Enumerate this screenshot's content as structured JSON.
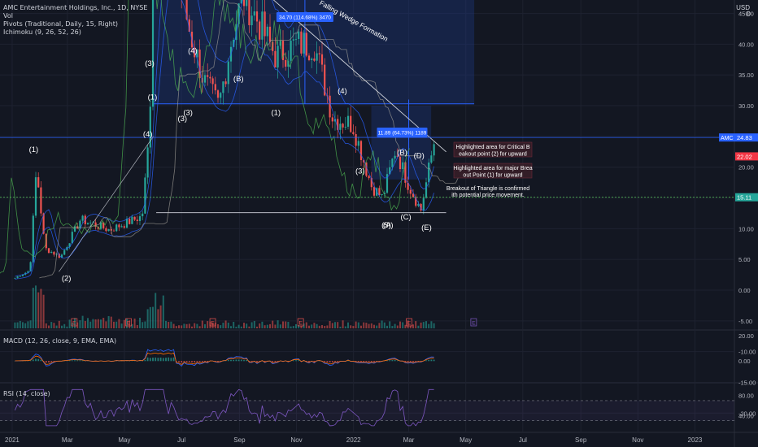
{
  "header": {
    "title": "AMC Entertainment Holdings, Inc., 1D, NYSE",
    "indicators": [
      "Vol",
      "Pivots (Traditional, Daily, 15, Right)",
      "Ichimoku (9, 26, 52, 26)"
    ],
    "currency": "USD"
  },
  "colors": {
    "background": "#131722",
    "grid": "#1e2230",
    "up": "#26a69a",
    "down": "#ef5350",
    "bb_blue": "#2962ff",
    "macd_line": "#2962ff",
    "signal_line": "#ff6d00",
    "rsi_line": "#7e57c2",
    "ichimoku_green": "#4caf50",
    "ichimoku_red": "#f23645",
    "target_box": "#1e3a8a",
    "label_blue": "#2962ff",
    "pivot_white": "#d1d4dc",
    "annotation_box": "#3a1f28"
  },
  "panes": {
    "macd_title": "MACD (12, 26, close, 9, EMA, EMA)",
    "rsi_title": "RSI (14, close)"
  },
  "chart_data": [
    {
      "type": "candlestick",
      "symbol": "AMC",
      "title": "AMC Entertainment Holdings, Inc., 1D, NYSE",
      "x_ticks": [
        "2021",
        "Mar",
        "May",
        "Jul",
        "Sep",
        "Nov",
        "2022",
        "Mar",
        "May",
        "Jul",
        "Sep",
        "Nov",
        "2023"
      ],
      "y_ticks": [
        "65.00",
        "60.00",
        "55.00",
        "50.00",
        "45.00",
        "40.00",
        "35.00",
        "30.00",
        "25.00",
        "20.00",
        "15.00",
        "10.00",
        "5.00",
        "0.00",
        "-5.00",
        "-10.00",
        "-15.00",
        "-20.00"
      ],
      "ylim": [
        -22,
        70
      ],
      "close_path": [
        [
          "2021-01-04",
          2.0
        ],
        [
          "2021-01-20",
          3.2
        ],
        [
          "2021-01-27",
          19.9
        ],
        [
          "2021-02-05",
          6.8
        ],
        [
          "2021-02-22",
          5.4
        ],
        [
          "2021-03-15",
          11.5
        ],
        [
          "2021-04-15",
          9.8
        ],
        [
          "2021-05-20",
          12.0
        ],
        [
          "2021-05-28",
          26.5
        ],
        [
          "2021-06-02",
          62.0
        ],
        [
          "2021-06-08",
          55.0
        ],
        [
          "2021-06-20",
          56.0
        ],
        [
          "2021-07-10",
          42.0
        ],
        [
          "2021-07-25",
          34.0
        ],
        [
          "2021-08-10",
          30.0
        ],
        [
          "2021-08-25",
          42.0
        ],
        [
          "2021-09-05",
          48.0
        ],
        [
          "2021-09-20",
          44.0
        ],
        [
          "2021-10-10",
          38.0
        ],
        [
          "2021-11-01",
          40.0
        ],
        [
          "2021-11-20",
          40.0
        ],
        [
          "2021-12-10",
          28.0
        ],
        [
          "2021-12-31",
          27.0
        ],
        [
          "2022-01-20",
          17.0
        ],
        [
          "2022-02-01",
          15.0
        ],
        [
          "2022-02-15",
          23.0
        ],
        [
          "2022-03-01",
          17.0
        ],
        [
          "2022-03-14",
          13.0
        ],
        [
          "2022-03-29",
          24.8
        ]
      ],
      "series_labels": {
        "current": "AMC",
        "current_value": "24.83",
        "pivot_value": "22.02",
        "green_value": "15.11"
      },
      "wave_labels": [
        "(1)",
        "(2)",
        "(3)",
        "(4)",
        "(1)",
        "(2)",
        "(3)",
        "(4)",
        "(A)",
        "(B)",
        "(C)",
        "(1)",
        "(2)",
        "(3)",
        "(4)",
        "(5)",
        "(A)",
        "(B)",
        "(C)",
        "(D)",
        "(E)",
        "(3)"
      ],
      "annotations": [
        "Falling Wedge Formation",
        "Highlighted area for Critical Breakout point (2) for upward",
        "Highlighted area for major Breakout Point (1) for upward",
        "Breakout of Triangle is confirmed with potential price movement."
      ],
      "measure_labels": [
        "34.70 (114.68%) 3470",
        "11.89 (64.73%) 1189"
      ],
      "earnings_markers": "E"
    },
    {
      "type": "line",
      "title": "MACD (12, 26, close, 9, EMA, EMA)",
      "y_ticks": [
        "20.00",
        "0.00"
      ],
      "ylim": [
        -14,
        26
      ]
    },
    {
      "type": "line",
      "title": "RSI (14, close)",
      "y_ticks": [
        "80.00",
        "40.00"
      ],
      "ylim": [
        15,
        100
      ],
      "levels": [
        70,
        30
      ]
    }
  ]
}
